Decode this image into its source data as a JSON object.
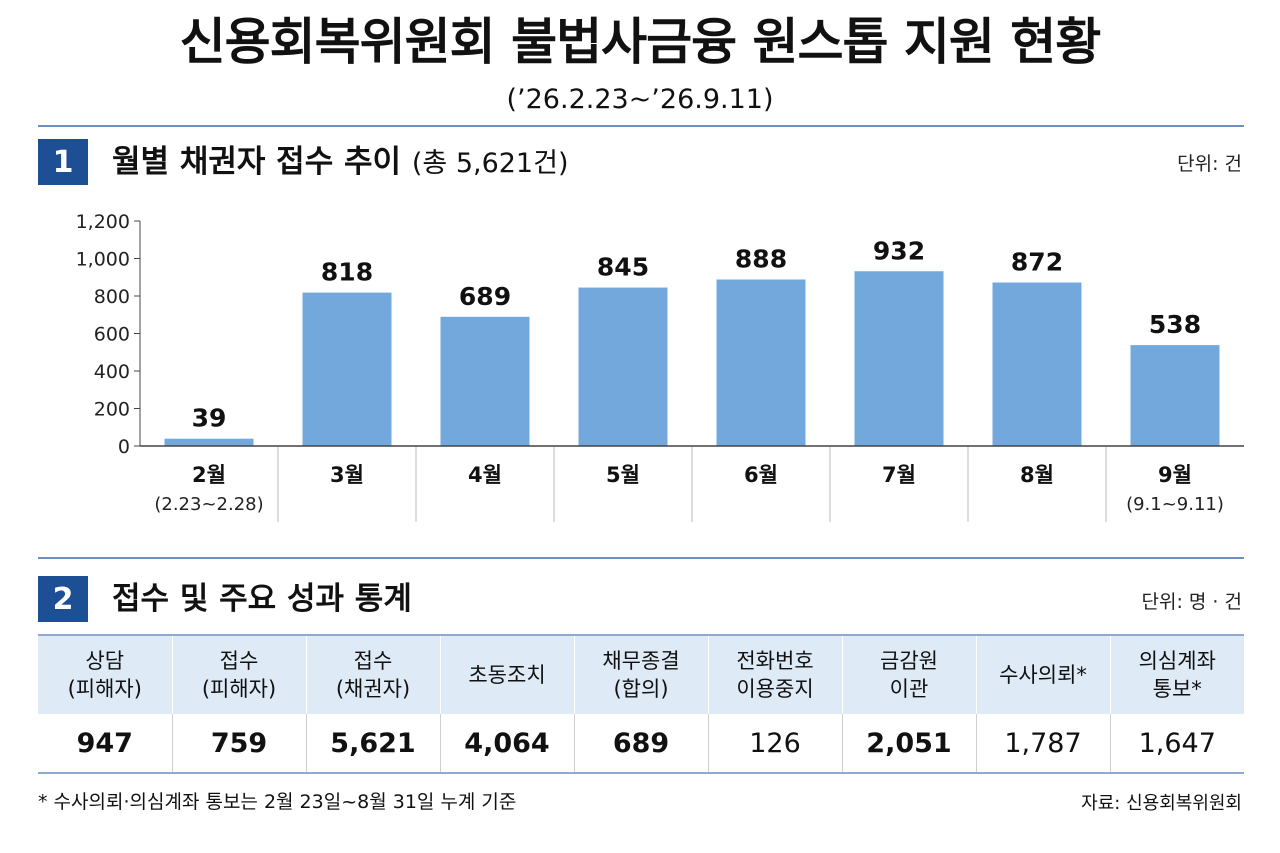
{
  "header": {
    "title": "신용회복위원회 불법사금융 원스톱 지원 현황",
    "period": "(’26.2.23~’26.9.11)"
  },
  "section1": {
    "number": "1",
    "title": "월별 채권자 접수 추이",
    "total_note": "(총 5,621건)",
    "unit": "단위: 건"
  },
  "chart_data": {
    "type": "bar",
    "title": "월별 채권자 접수 추이",
    "categories": [
      "2월",
      "3월",
      "4월",
      "5월",
      "6월",
      "7월",
      "8월",
      "9월"
    ],
    "category_subtitles": [
      "(2.23~2.28)",
      "",
      "",
      "",
      "",
      "",
      "",
      "(9.1~9.11)"
    ],
    "values": [
      39,
      818,
      689,
      845,
      888,
      932,
      872,
      538
    ],
    "data_labels": [
      "39",
      "818",
      "689",
      "845",
      "888",
      "932",
      "872",
      "538"
    ],
    "yticks": [
      0,
      200,
      400,
      600,
      800,
      1000,
      1200
    ],
    "ytick_labels": [
      "0",
      "200",
      "400",
      "600",
      "800",
      "1,000",
      "1,200"
    ],
    "ylim": [
      0,
      1200
    ],
    "bar_color": "#73a8dc",
    "grid": false
  },
  "section2": {
    "number": "2",
    "title": "접수 및 주요 성과 통계",
    "unit": "단위: 명 · 건",
    "columns": [
      {
        "line1": "상담",
        "line2": "(피해자)",
        "value": "947",
        "bold": true
      },
      {
        "line1": "접수",
        "line2": "(피해자)",
        "value": "759",
        "bold": true
      },
      {
        "line1": "접수",
        "line2": "(채권자)",
        "value": "5,621",
        "bold": true
      },
      {
        "line1": "초동조치",
        "line2": "",
        "value": "4,064",
        "bold": true
      },
      {
        "line1": "채무종결",
        "line2": "(합의)",
        "value": "689",
        "bold": true
      },
      {
        "line1": "전화번호",
        "line2": "이용중지",
        "value": "126",
        "bold": false
      },
      {
        "line1": "금감원",
        "line2": "이관",
        "value": "2,051",
        "bold": true
      },
      {
        "line1": "수사의뢰*",
        "line2": "",
        "value": "1,787",
        "bold": false
      },
      {
        "line1": "의심계좌",
        "line2": "통보*",
        "value": "1,647",
        "bold": false
      }
    ]
  },
  "footer": {
    "footnote": "* 수사의뢰·의심계좌 통보는 2월 23일~8월 31일 누계 기준",
    "source": "자료: 신용회복위원회"
  },
  "colors": {
    "accent": "#1c4f94",
    "bar": "#73a8dc",
    "rule": "#6d8fc1",
    "table_header": "#dfeaf7"
  }
}
